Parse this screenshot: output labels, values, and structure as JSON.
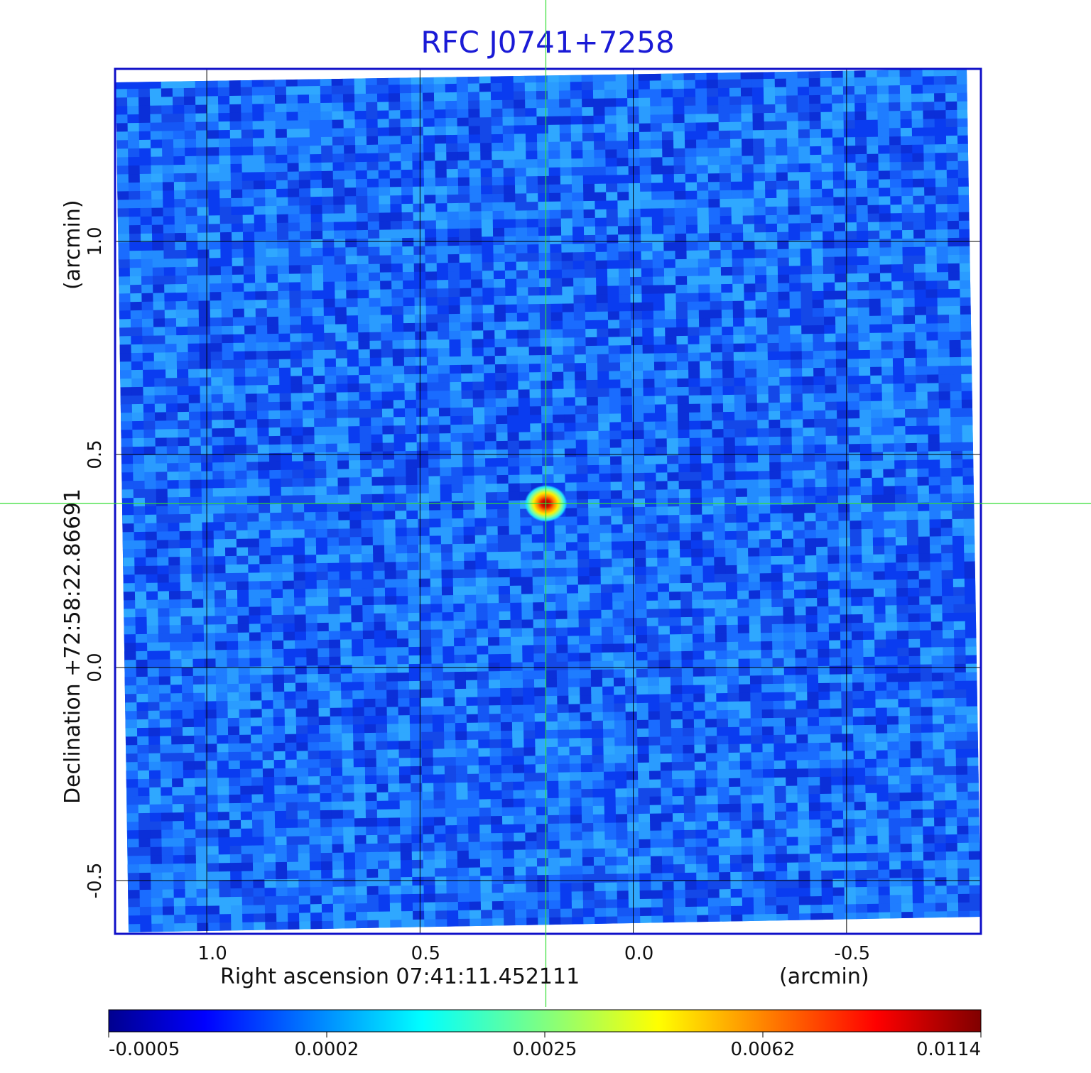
{
  "chart_data": {
    "type": "heatmap",
    "title": "RFC J0741+7258",
    "xlabel": "Right ascension  07:41:11.452111",
    "x_unit_label": "(arcmin)",
    "ylabel": "Declination  +72:58:22.86691",
    "y_unit_label": "(arcmin)",
    "x_ticks": [
      1.0,
      0.5,
      0.0,
      -0.5
    ],
    "x_tick_labels": [
      "1.0",
      "0.5",
      "0.0",
      "-0.5"
    ],
    "y_ticks": [
      1.0,
      0.5,
      0.0,
      -0.5
    ],
    "y_tick_labels": [
      "1.0",
      "0.5",
      "0.0",
      "-0.5"
    ],
    "xlim": [
      1.215,
      -0.815
    ],
    "ylim": [
      -0.625,
      1.405
    ],
    "grid": true,
    "crosshair": {
      "ra_offset": 0.205,
      "dec_offset": 0.385
    },
    "source_peak": {
      "ra_offset": 0.205,
      "dec_offset": 0.385,
      "flux": 0.0114
    },
    "colorbar": {
      "colormap": "jet",
      "tick_labels": [
        "-0.0005",
        "0.0002",
        "0.0025",
        "0.0062",
        "0.0114"
      ]
    },
    "colors": {
      "frame": "#1010c8",
      "title": "#1a1ad6",
      "crosshair": "#33dd33",
      "grid": "#000000"
    }
  }
}
